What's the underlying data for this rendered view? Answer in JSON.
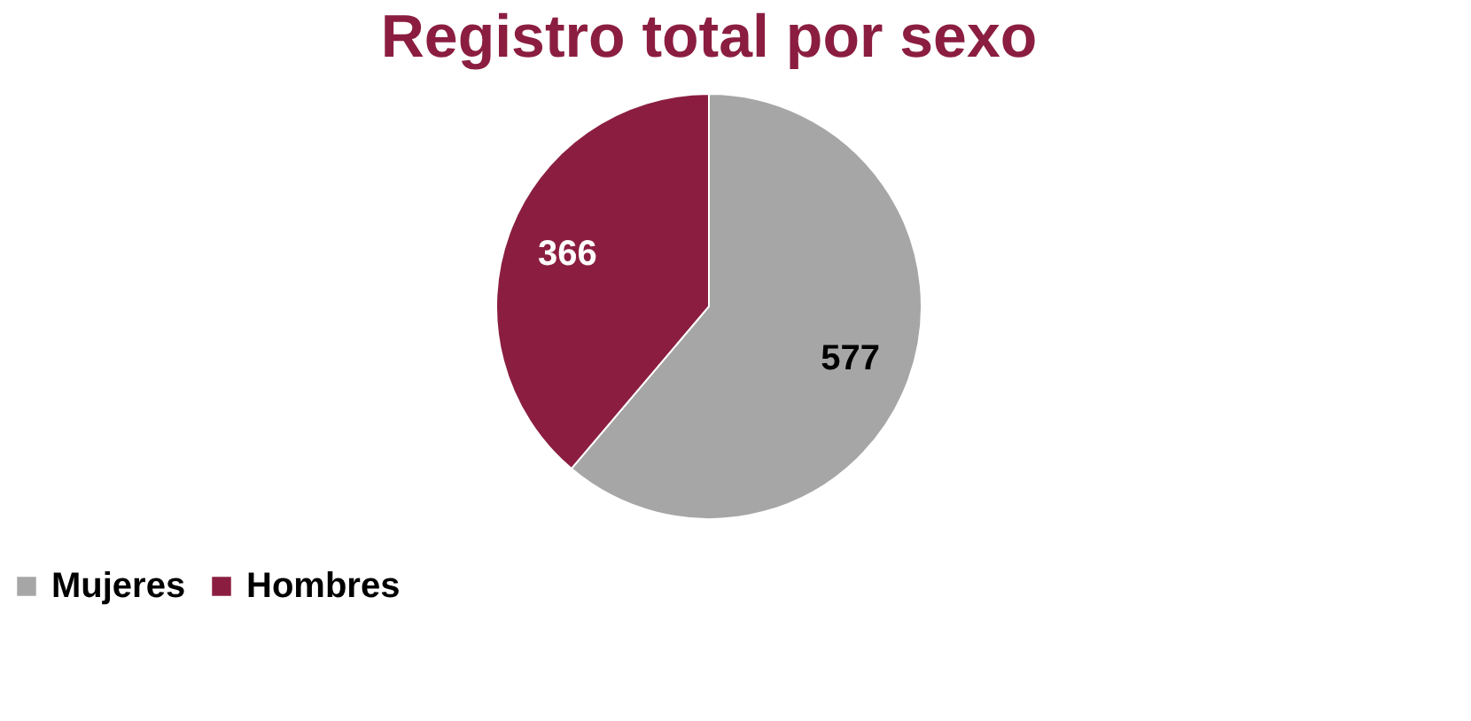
{
  "chart_data": {
    "type": "pie",
    "title": "Registro total por sexo",
    "categories": [
      "Mujeres",
      "Hombres"
    ],
    "values": [
      577,
      366
    ],
    "colors": [
      "#a6a6a6",
      "#8b1e40"
    ],
    "data_labels": true,
    "legend": "bottom"
  }
}
